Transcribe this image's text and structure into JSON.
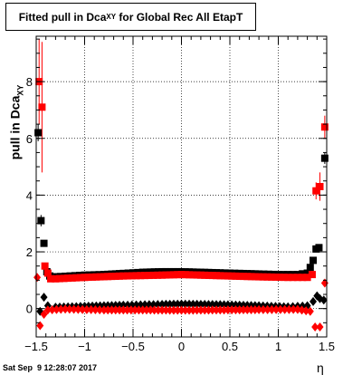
{
  "title": {
    "main": "Fitted pull in Dca",
    "sub": "XY",
    "rest": " for Global Rec All EtapT"
  },
  "timestamp": "Sat Sep  9 12:28:07 2017",
  "axes": {
    "y_label_main": "pull in Dca",
    "y_label_sub": "XY",
    "x_label": "η"
  },
  "chart_data": {
    "type": "scatter",
    "xlim": [
      -1.5,
      1.5
    ],
    "ylim": [
      -1.0,
      9.6
    ],
    "x_ticks": [
      -1.5,
      -1,
      -0.5,
      0,
      0.5,
      1,
      1.5
    ],
    "x_tick_labels": [
      "−1.5",
      "−1",
      "−0.5",
      "0",
      "0.5",
      "1",
      "1.5"
    ],
    "y_ticks": [
      0,
      2,
      4,
      6,
      8
    ],
    "y_tick_labels": [
      "0",
      "2",
      "4",
      "6",
      "8"
    ],
    "grid": true,
    "series": [
      {
        "color": "#000000",
        "marker": "square",
        "points": [
          {
            "x": -1.48,
            "y": 6.2,
            "err": 0.3
          },
          {
            "x": -1.45,
            "y": 3.1,
            "err": 0.2
          },
          {
            "x": -1.42,
            "y": 2.3,
            "err": 0.1
          },
          {
            "x": -1.39,
            "y": 1.3
          },
          {
            "x": -1.36,
            "y": 1.15
          },
          {
            "x": -1.33,
            "y": 1.12
          },
          {
            "x": -1.3,
            "y": 1.12
          },
          {
            "x": -1.2,
            "y": 1.14
          },
          {
            "x": -1.0,
            "y": 1.18
          },
          {
            "x": -0.8,
            "y": 1.2
          },
          {
            "x": -0.6,
            "y": 1.24
          },
          {
            "x": -0.4,
            "y": 1.28
          },
          {
            "x": -0.2,
            "y": 1.3
          },
          {
            "x": 0.0,
            "y": 1.3
          },
          {
            "x": 0.2,
            "y": 1.28
          },
          {
            "x": 0.4,
            "y": 1.26
          },
          {
            "x": 0.6,
            "y": 1.24
          },
          {
            "x": 0.8,
            "y": 1.22
          },
          {
            "x": 1.0,
            "y": 1.2
          },
          {
            "x": 1.2,
            "y": 1.2
          },
          {
            "x": 1.3,
            "y": 1.25
          },
          {
            "x": 1.33,
            "y": 1.45
          },
          {
            "x": 1.36,
            "y": 1.7
          },
          {
            "x": 1.39,
            "y": 2.1
          },
          {
            "x": 1.42,
            "y": 2.15
          },
          {
            "x": 1.48,
            "y": 5.3,
            "err": 0.2
          }
        ]
      },
      {
        "color": "#000000",
        "marker": "diamond",
        "points": [
          {
            "x": -1.46,
            "y": -0.1
          },
          {
            "x": -1.42,
            "y": 0.4
          },
          {
            "x": -1.38,
            "y": 0.1
          },
          {
            "x": -1.3,
            "y": 0.05
          },
          {
            "x": -1.0,
            "y": 0.08
          },
          {
            "x": -0.6,
            "y": 0.12
          },
          {
            "x": -0.2,
            "y": 0.15
          },
          {
            "x": 0.0,
            "y": 0.16
          },
          {
            "x": 0.4,
            "y": 0.14
          },
          {
            "x": 0.8,
            "y": 0.1
          },
          {
            "x": 1.1,
            "y": 0.06
          },
          {
            "x": 1.3,
            "y": 0.1
          },
          {
            "x": 1.36,
            "y": 0.25
          },
          {
            "x": 1.4,
            "y": 0.45
          },
          {
            "x": 1.43,
            "y": 0.35
          },
          {
            "x": 1.47,
            "y": 0.3
          }
        ]
      },
      {
        "color": "#ff0000",
        "marker": "square",
        "points": [
          {
            "x": -1.47,
            "y": 8.0,
            "err": 1.5
          },
          {
            "x": -1.44,
            "y": 7.1,
            "err": 2.3
          },
          {
            "x": -1.41,
            "y": 1.5
          },
          {
            "x": -1.38,
            "y": 1.25
          },
          {
            "x": -1.35,
            "y": 1.05
          },
          {
            "x": -1.3,
            "y": 1.05
          },
          {
            "x": -1.0,
            "y": 1.1
          },
          {
            "x": -0.6,
            "y": 1.15
          },
          {
            "x": -0.2,
            "y": 1.18
          },
          {
            "x": 0.0,
            "y": 1.2
          },
          {
            "x": 0.4,
            "y": 1.16
          },
          {
            "x": 0.8,
            "y": 1.12
          },
          {
            "x": 1.1,
            "y": 1.1
          },
          {
            "x": 1.3,
            "y": 1.1
          },
          {
            "x": 1.35,
            "y": 1.2
          },
          {
            "x": 1.39,
            "y": 4.15,
            "err": 0.3
          },
          {
            "x": 1.43,
            "y": 4.3,
            "err": 0.5
          },
          {
            "x": 1.48,
            "y": 6.4,
            "err": 0.4
          }
        ]
      },
      {
        "color": "#ff0000",
        "marker": "diamond",
        "points": [
          {
            "x": -1.49,
            "y": 1.1
          },
          {
            "x": -1.46,
            "y": -0.6
          },
          {
            "x": -1.42,
            "y": -0.2
          },
          {
            "x": -1.38,
            "y": -0.05
          },
          {
            "x": -1.2,
            "y": -0.02
          },
          {
            "x": -0.8,
            "y": -0.05
          },
          {
            "x": -0.4,
            "y": -0.05
          },
          {
            "x": 0.0,
            "y": -0.06
          },
          {
            "x": 0.4,
            "y": -0.05
          },
          {
            "x": 0.8,
            "y": -0.04
          },
          {
            "x": 1.2,
            "y": -0.03
          },
          {
            "x": 1.33,
            "y": -0.1
          },
          {
            "x": 1.38,
            "y": -0.65
          },
          {
            "x": 1.43,
            "y": -0.65
          },
          {
            "x": 1.48,
            "y": 0.9
          }
        ]
      }
    ]
  }
}
